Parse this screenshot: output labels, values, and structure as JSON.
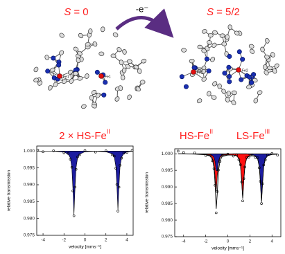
{
  "header": {
    "state_before": {
      "symbol": "S",
      "text": "= 0"
    },
    "oxidation": "-e⁻",
    "state_after": {
      "symbol": "S",
      "text": "= 5/2"
    },
    "atom_labels_before": [
      "Fe1'",
      "Fe1"
    ],
    "atom_labels_after": [
      "Fe1",
      "Fe2"
    ]
  },
  "chart_data": [
    {
      "type": "line",
      "titles": [
        {
          "text": "2 × HS-Fe",
          "sup": "II",
          "color": "#ff2020"
        }
      ],
      "xlabel": "velocity [mms⁻¹]",
      "ylabel": "relative transmission",
      "xlim": [
        -4.6,
        4.6
      ],
      "xticks": [
        -4,
        -2,
        0,
        2,
        4
      ],
      "ylim": [
        0.975,
        1.0015
      ],
      "yticks": [
        {
          "value": 0.975,
          "label": "0.975"
        },
        {
          "value": 0.98,
          "label": "0.980"
        },
        {
          "value": 0.985,
          "label": "0.985"
        },
        {
          "value": 0.99,
          "label": "0.990"
        },
        {
          "value": 0.995,
          "label": "0.995"
        },
        {
          "value": 1,
          "label": "1.000"
        }
      ],
      "x": [
        -4.5,
        -4,
        -3,
        -2,
        -1.6,
        -1.4,
        -1.25,
        -1.15,
        -1.05,
        -0.95,
        -0.85,
        -0.7,
        -0.5,
        0,
        1,
        2,
        2.6,
        2.8,
        2.95,
        3.05,
        3.15,
        3.25,
        3.35,
        3.5,
        3.7,
        4,
        4.5
      ],
      "points": {
        "color": "#000000",
        "values": [
          1.0003,
          0.9998,
          1.0001,
          0.9995,
          0.9993,
          0.9976,
          0.9952,
          0.9882,
          0.9808,
          0.9893,
          0.9946,
          0.9983,
          0.9989,
          1.0002,
          0.9997,
          1.0001,
          0.9989,
          0.9985,
          0.9949,
          0.9901,
          0.9822,
          0.9893,
          0.9958,
          0.9979,
          0.9994,
          0.9996,
          1.0002
        ]
      },
      "series": [
        {
          "color": "#1c1ca0",
          "fill": true,
          "outline": "#000000",
          "values": [
            1,
            1,
            1,
            0.9997,
            0.9991,
            0.998,
            0.995,
            0.9888,
            0.981,
            0.9888,
            0.995,
            0.998,
            0.9991,
            0.9998,
            1,
            0.9998,
            0.9992,
            0.9982,
            0.9954,
            0.9897,
            0.9825,
            0.9897,
            0.9954,
            0.9982,
            0.9992,
            0.9997,
            1
          ]
        }
      ]
    },
    {
      "type": "line",
      "titles": [
        {
          "text": "HS-Fe",
          "sup": "II",
          "color": "#ff2020"
        },
        {
          "text": "LS-Fe",
          "sup": "III",
          "color": "#ff2020"
        }
      ],
      "xlabel": "velocity [mms⁻¹]",
      "ylabel": "relative transmission",
      "xlim": [
        -4.8,
        4.8
      ],
      "xticks": [
        -4,
        -2,
        0,
        2,
        4
      ],
      "ylim": [
        0.975,
        1.0015
      ],
      "yticks": [
        {
          "value": 0.975,
          "label": "0.975"
        },
        {
          "value": 0.98,
          "label": "0.980"
        },
        {
          "value": 0.985,
          "label": "0.985"
        },
        {
          "value": 0.99,
          "label": "0.990"
        },
        {
          "value": 0.995,
          "label": "0.995"
        },
        {
          "value": 1,
          "label": "1.000"
        }
      ],
      "x": [
        -4.5,
        -4,
        -3,
        -2,
        -1.6,
        -1.4,
        -1.25,
        -1.15,
        -1.05,
        -0.95,
        -0.85,
        -0.7,
        -0.5,
        0,
        0.5,
        0.8,
        1.0,
        1.15,
        1.25,
        1.35,
        1.45,
        1.55,
        1.7,
        1.9,
        2.2,
        2.5,
        2.7,
        2.85,
        2.95,
        3.05,
        3.15,
        3.25,
        3.4,
        3.6,
        4,
        4.5
      ],
      "points": {
        "color": "#000000",
        "values": [
          1.0008,
          1.0004,
          1.0003,
          0.9995,
          0.9996,
          0.9979,
          0.9955,
          0.9905,
          0.9822,
          0.9886,
          0.9951,
          0.9977,
          0.9995,
          0.9999,
          0.9993,
          0.9997,
          0.9982,
          0.9967,
          0.9915,
          0.9858,
          0.9925,
          0.996,
          0.9989,
          0.999,
          0.9997,
          0.9989,
          0.9988,
          0.9958,
          0.9917,
          0.985,
          0.991,
          0.9966,
          0.9982,
          0.9997,
          1.0001,
          0.9996
        ]
      },
      "series": [
        {
          "color": "#ff1010",
          "fill": true,
          "outline": "#000000",
          "values": [
            1,
            1,
            1,
            0.9998,
            0.9995,
            0.9988,
            0.997,
            0.9932,
            0.9885,
            0.9932,
            0.997,
            0.9988,
            0.9995,
            0.9997,
            0.9996,
            0.9994,
            0.9986,
            0.9964,
            0.992,
            0.9865,
            0.992,
            0.9964,
            0.9986,
            0.9994,
            0.9997,
            0.9998,
            1,
            1,
            1,
            1,
            1,
            1,
            1,
            1,
            1,
            1
          ]
        },
        {
          "color": "#1c1ca0",
          "fill": true,
          "outline": "#000000",
          "values": [
            1,
            1,
            0.9999,
            0.9999,
            0.9998,
            0.9995,
            0.9989,
            0.9977,
            0.9949,
            0.9949,
            0.9977,
            0.9992,
            0.9997,
            0.9999,
            1,
            1,
            1,
            1,
            1,
            1,
            1,
            1,
            1,
            0.9998,
            0.9997,
            0.9994,
            0.9985,
            0.9962,
            0.9914,
            0.9855,
            0.9914,
            0.9962,
            0.9985,
            0.9994,
            0.9998,
            0.9999
          ]
        },
        {
          "color": "#000000",
          "fill": false,
          "values": [
            1,
            1,
            0.9999,
            0.9997,
            0.9993,
            0.9983,
            0.9959,
            0.9909,
            0.9834,
            0.9881,
            0.9947,
            0.998,
            0.9992,
            0.9996,
            0.9996,
            0.9994,
            0.9986,
            0.9964,
            0.992,
            0.9865,
            0.992,
            0.9964,
            0.9986,
            0.9992,
            0.9994,
            0.9992,
            0.9985,
            0.9962,
            0.9914,
            0.9855,
            0.9914,
            0.9962,
            0.9985,
            0.9994,
            0.9998,
            0.9999
          ]
        }
      ]
    }
  ]
}
